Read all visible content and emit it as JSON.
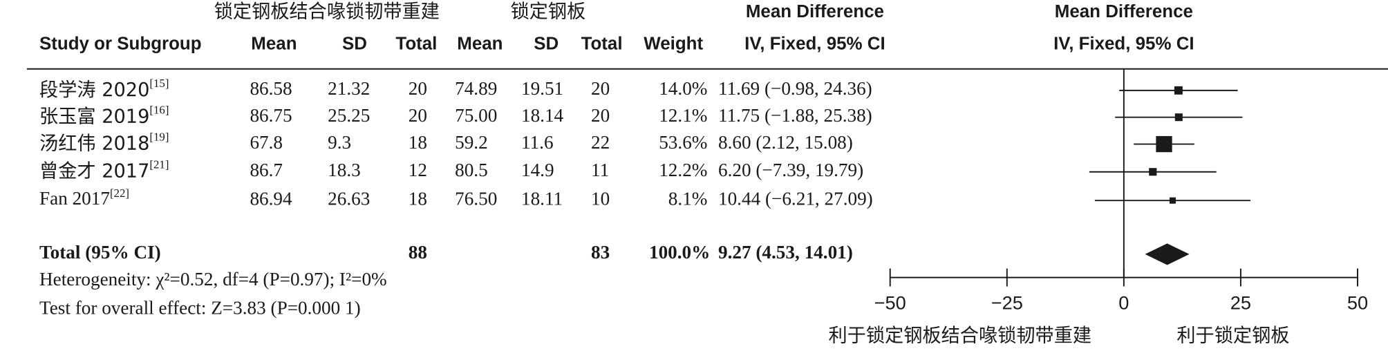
{
  "chart_data": {
    "type": "forest",
    "group_headers": [
      "锁定钢板结合喙锁韧带重建",
      "锁定钢板"
    ],
    "columns": [
      "Study or Subgroup",
      "Mean",
      "SD",
      "Total",
      "Mean",
      "SD",
      "Total",
      "Weight"
    ],
    "effect_header": [
      "Mean Difference",
      "IV, Fixed, 95% CI"
    ],
    "plot_header": [
      "Mean Difference",
      "IV, Fixed, 95% CI"
    ],
    "studies": [
      "段学涛 2020",
      "张玉富 2019",
      "汤红伟 2018",
      "曾金才 2017",
      "Fan 2017"
    ],
    "refs": [
      "[15]",
      "[16]",
      "[19]",
      "[21]",
      "[22]"
    ],
    "rows": [
      [
        "86.58",
        "21.32",
        "20",
        "74.89",
        "19.51",
        "20"
      ],
      [
        "86.75",
        "25.25",
        "20",
        "75.00",
        "18.14",
        "20"
      ],
      [
        "67.8",
        "9.3",
        "18",
        "59.2",
        "11.6",
        "22"
      ],
      [
        "86.7",
        "18.3",
        "12",
        "80.5",
        "14.9",
        "11"
      ],
      [
        "86.94",
        "26.63",
        "18",
        "76.50",
        "18.11",
        "10"
      ]
    ],
    "weights": [
      14.0,
      12.1,
      53.6,
      12.2,
      8.1
    ],
    "weight_labels": [
      "14.0%",
      "12.1%",
      "53.6%",
      "12.2%",
      "8.1%"
    ],
    "values": [
      11.69,
      11.75,
      8.6,
      6.2,
      10.44
    ],
    "ci_low": [
      -0.98,
      -1.88,
      2.12,
      -7.39,
      -6.21
    ],
    "ci_high": [
      24.36,
      25.38,
      15.08,
      19.79,
      27.09
    ],
    "value_labels": [
      "11.69 (−0.98, 24.36)",
      "11.75 (−1.88, 25.38)",
      "8.60 (2.12, 15.08)",
      "6.20 (−7.39, 19.79)",
      "10.44 (−6.21, 27.09)"
    ],
    "total": {
      "label": "Total (95% CI)",
      "n1": "88",
      "n2": "83",
      "weight_label": "100.0%",
      "value": 9.27,
      "ci_low": 4.53,
      "ci_high": 14.01,
      "value_label": "9.27 (4.53, 14.01)"
    },
    "heterogeneity": "Heterogeneity: χ²=0.52, df=4 (P=0.97); I²=0%",
    "overall_effect": "Test for overall effect: Z=3.83 (P=0.000 1)",
    "xlim": [
      -50,
      50
    ],
    "xticks": [
      {
        "value": -50,
        "label": "−50"
      },
      {
        "value": -25,
        "label": "−25"
      },
      0,
      25,
      50
    ],
    "favours": [
      "利于锁定钢板结合喙锁韧带重建",
      "利于锁定钢板"
    ],
    "color": "#1a1a1a"
  }
}
